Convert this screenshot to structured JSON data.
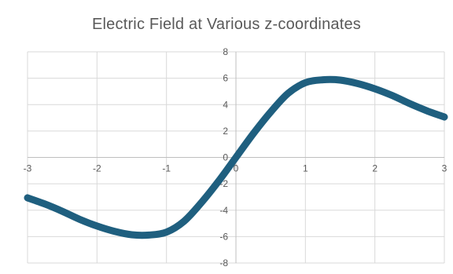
{
  "chart_data": {
    "type": "line",
    "title": "Electric Field at Various z-coordinates",
    "xlabel": "",
    "ylabel": "",
    "xlim": [
      -3,
      3
    ],
    "ylim": [
      -8,
      8
    ],
    "x_ticks": [
      -3,
      -2,
      -1,
      0,
      1,
      2,
      3
    ],
    "y_ticks": [
      -8,
      -6,
      -4,
      -2,
      0,
      2,
      4,
      6,
      8
    ],
    "grid": true,
    "legend": "none",
    "series": [
      {
        "color": "#1f5f7f",
        "x": [
          -3.0,
          -2.75,
          -2.5,
          -2.25,
          -2.0,
          -1.75,
          -1.5,
          -1.25,
          -1.0,
          -0.75,
          -0.5,
          -0.25,
          0.0,
          0.25,
          0.5,
          0.75,
          1.0,
          1.25,
          1.5,
          1.75,
          2.0,
          2.25,
          2.5,
          2.75,
          3.0
        ],
        "y": [
          -3.06,
          -3.53,
          -4.08,
          -4.69,
          -5.2,
          -5.6,
          -5.86,
          -5.88,
          -5.66,
          -4.85,
          -3.44,
          -1.8,
          0.0,
          1.8,
          3.44,
          4.85,
          5.66,
          5.88,
          5.86,
          5.6,
          5.2,
          4.69,
          4.08,
          3.53,
          3.06
        ]
      }
    ]
  }
}
